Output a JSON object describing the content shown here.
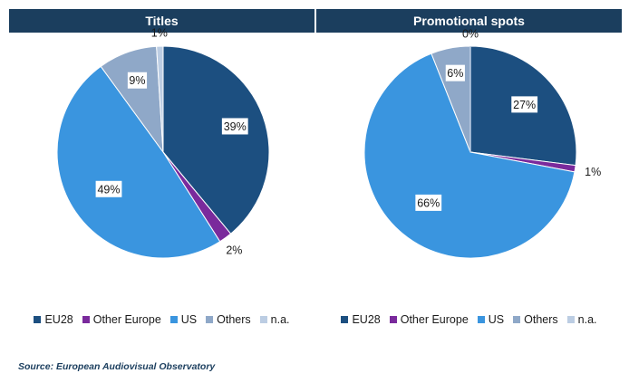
{
  "colors": {
    "EU28": "#1c4f80",
    "Other Europe": "#7a2a9c",
    "US": "#3a95df",
    "Others": "#8fa8c8",
    "n.a.": "#bccde3",
    "header": "#1b3e5e"
  },
  "chart_data": [
    {
      "type": "pie",
      "title": "Titles",
      "labels": [
        "EU28",
        "Other Europe",
        "US",
        "Others",
        "n.a."
      ],
      "values": [
        39,
        2,
        49,
        9,
        1
      ],
      "value_labels": [
        "39%",
        "2%",
        "49%",
        "9%",
        "1%"
      ],
      "legend": [
        "EU28",
        "Other Europe",
        "US",
        "Others",
        "n.a."
      ]
    },
    {
      "type": "pie",
      "title": "Promotional spots",
      "labels": [
        "EU28",
        "Other Europe",
        "US",
        "Others",
        "n.a."
      ],
      "values": [
        27,
        1,
        66,
        6,
        0
      ],
      "value_labels": [
        "27%",
        "1%",
        "66%",
        "6%",
        "0%"
      ],
      "legend": [
        "EU28",
        "Other Europe",
        "US",
        "Others",
        "n.a."
      ]
    }
  ],
  "source": "Source: European Audiovisual Observatory"
}
